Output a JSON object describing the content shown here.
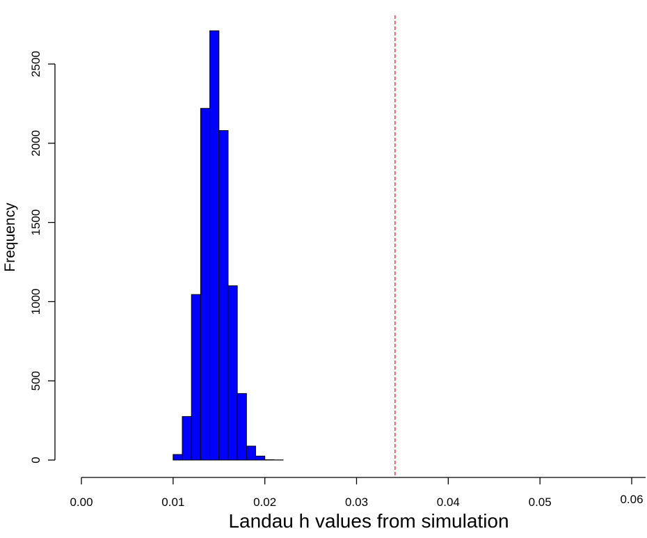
{
  "chart_data": {
    "type": "bar",
    "subtype": "histogram",
    "xlabel": "Landau h values from simulation",
    "ylabel": "Frequency",
    "x_ticks": [
      "0.00",
      "0.01",
      "0.02",
      "0.03",
      "0.04",
      "0.05",
      "0.06"
    ],
    "y_ticks": [
      "0",
      "500",
      "1000",
      "1500",
      "2000",
      "2500"
    ],
    "xlim": [
      0.0,
      0.06
    ],
    "ylim": [
      0,
      2600
    ],
    "bins": [
      {
        "x0": 0.01,
        "x1": 0.011,
        "count": 35
      },
      {
        "x0": 0.011,
        "x1": 0.012,
        "count": 275
      },
      {
        "x0": 0.012,
        "x1": 0.013,
        "count": 1045
      },
      {
        "x0": 0.013,
        "x1": 0.014,
        "count": 2220
      },
      {
        "x0": 0.014,
        "x1": 0.015,
        "count": 2710
      },
      {
        "x0": 0.015,
        "x1": 0.016,
        "count": 2080
      },
      {
        "x0": 0.016,
        "x1": 0.017,
        "count": 1100
      },
      {
        "x0": 0.017,
        "x1": 0.018,
        "count": 420
      },
      {
        "x0": 0.018,
        "x1": 0.019,
        "count": 88
      },
      {
        "x0": 0.019,
        "x1": 0.02,
        "count": 25
      },
      {
        "x0": 0.02,
        "x1": 0.021,
        "count": 2
      },
      {
        "x0": 0.021,
        "x1": 0.022,
        "count": 1
      }
    ],
    "reference_line": {
      "x": 0.0342,
      "style": "dashed"
    },
    "colors": {
      "bar_fill": "#0000ff",
      "bar_stroke": "#000000",
      "reference_line": "#ff0000"
    }
  }
}
